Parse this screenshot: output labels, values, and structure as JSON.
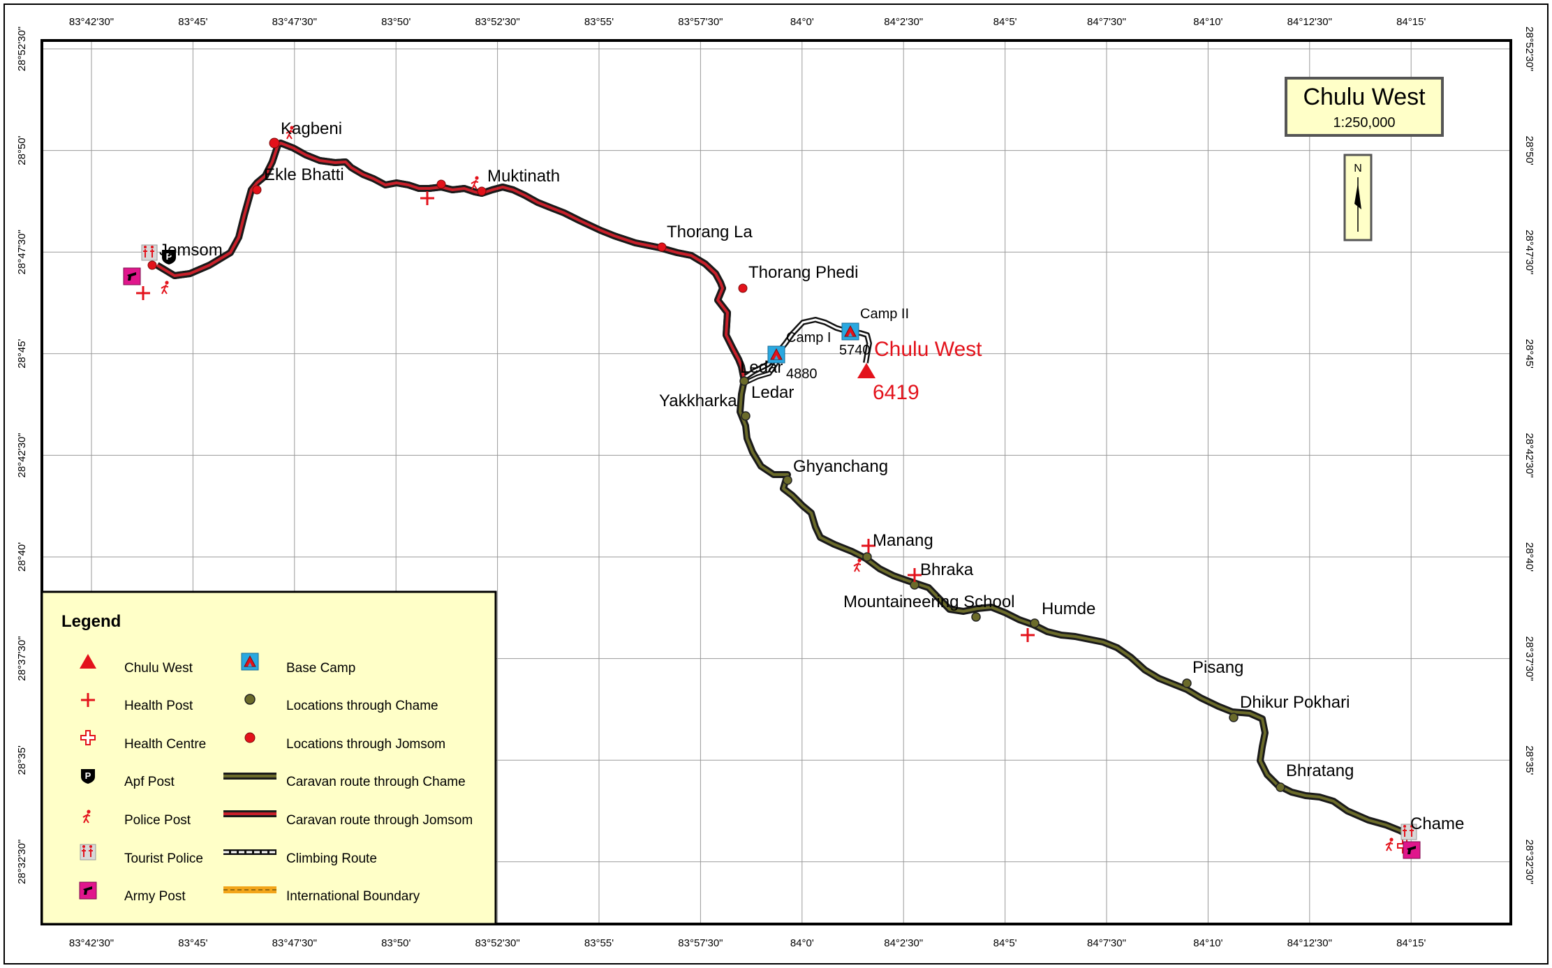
{
  "title": "Chulu West",
  "scale": "1:250,000",
  "north_letter": "N",
  "peak": {
    "name": "Chulu West",
    "elevation": "6419"
  },
  "top_lon_labels": [
    "83°42'30\"",
    "83°45'",
    "83°47'30\"",
    "83°50'",
    "83°52'30\"",
    "83°55'",
    "83°57'30\"",
    "84°0'",
    "84°2'30\"",
    "84°5'",
    "84°7'30\"",
    "84°10'",
    "84°12'30\"",
    "84°15'"
  ],
  "left_lat_labels": [
    "28°52'30\"",
    "28°50'",
    "28°47'30\"",
    "28°45'",
    "28°42'30\"",
    "28°40'",
    "28°37'30\"",
    "28°35'",
    "28°32'30\""
  ],
  "places": {
    "kagbeni": "Kagbeni",
    "ekle_bhatti": "Ekle Bhatti",
    "jomsom": "Jomsom",
    "muktinath": "Muktinath",
    "thorang_la": "Thorang La",
    "thorang_phedi": "Thorang Phedi",
    "camp_ii": "Camp II",
    "camp_i": "Camp I",
    "camp_ii_elev": "5740",
    "ledar_bc": "Ledar",
    "ledar_bc_elev": "4880",
    "ledar": "Ledar",
    "yakkharka": "Yakkharka",
    "ghyanchang": "Ghyanchang",
    "manang": "Manang",
    "bhraka": "Bhraka",
    "mountaineering_school": "Mountaineering School",
    "humde": "Humde",
    "pisang": "Pisang",
    "dhikur_pokhari": "Dhikur Pokhari",
    "bhratang": "Bhratang",
    "chame": "Chame"
  },
  "legend": {
    "title": "Legend",
    "items": [
      {
        "label": "Chulu West",
        "icon": "peak-triangle-icon"
      },
      {
        "label": "Health Post",
        "icon": "health-post-icon"
      },
      {
        "label": "Health Centre",
        "icon": "health-centre-icon"
      },
      {
        "label": "Apf Post",
        "icon": "apf-post-icon"
      },
      {
        "label": "Police Post",
        "icon": "police-post-icon"
      },
      {
        "label": "Tourist Police",
        "icon": "tourist-police-icon"
      },
      {
        "label": "Army Post",
        "icon": "army-post-icon"
      },
      {
        "label": "Base Camp",
        "icon": "base-camp-icon"
      },
      {
        "label": "Locations through Chame",
        "icon": "chame-location-icon"
      },
      {
        "label": "Locations through Jomsom",
        "icon": "jomsom-location-icon"
      },
      {
        "label": "Caravan route through Chame",
        "icon": "chame-route-icon"
      },
      {
        "label": "Caravan route through Jomsom",
        "icon": "jomsom-route-icon"
      },
      {
        "label": "Climbing Route",
        "icon": "climbing-route-icon"
      },
      {
        "label": "International Boundary",
        "icon": "boundary-icon"
      }
    ]
  },
  "colors": {
    "jomsom_route": "#c8202a",
    "chame_route": "#6b6b2a",
    "route_casing": "#1a1a1a",
    "peak": "#e3121b",
    "legend_bg": "#ffffc8",
    "title_bg": "#ffffc8",
    "base_camp": "#29a8e0",
    "army_post": "#e0168c",
    "boundary": "#f2a51a"
  }
}
